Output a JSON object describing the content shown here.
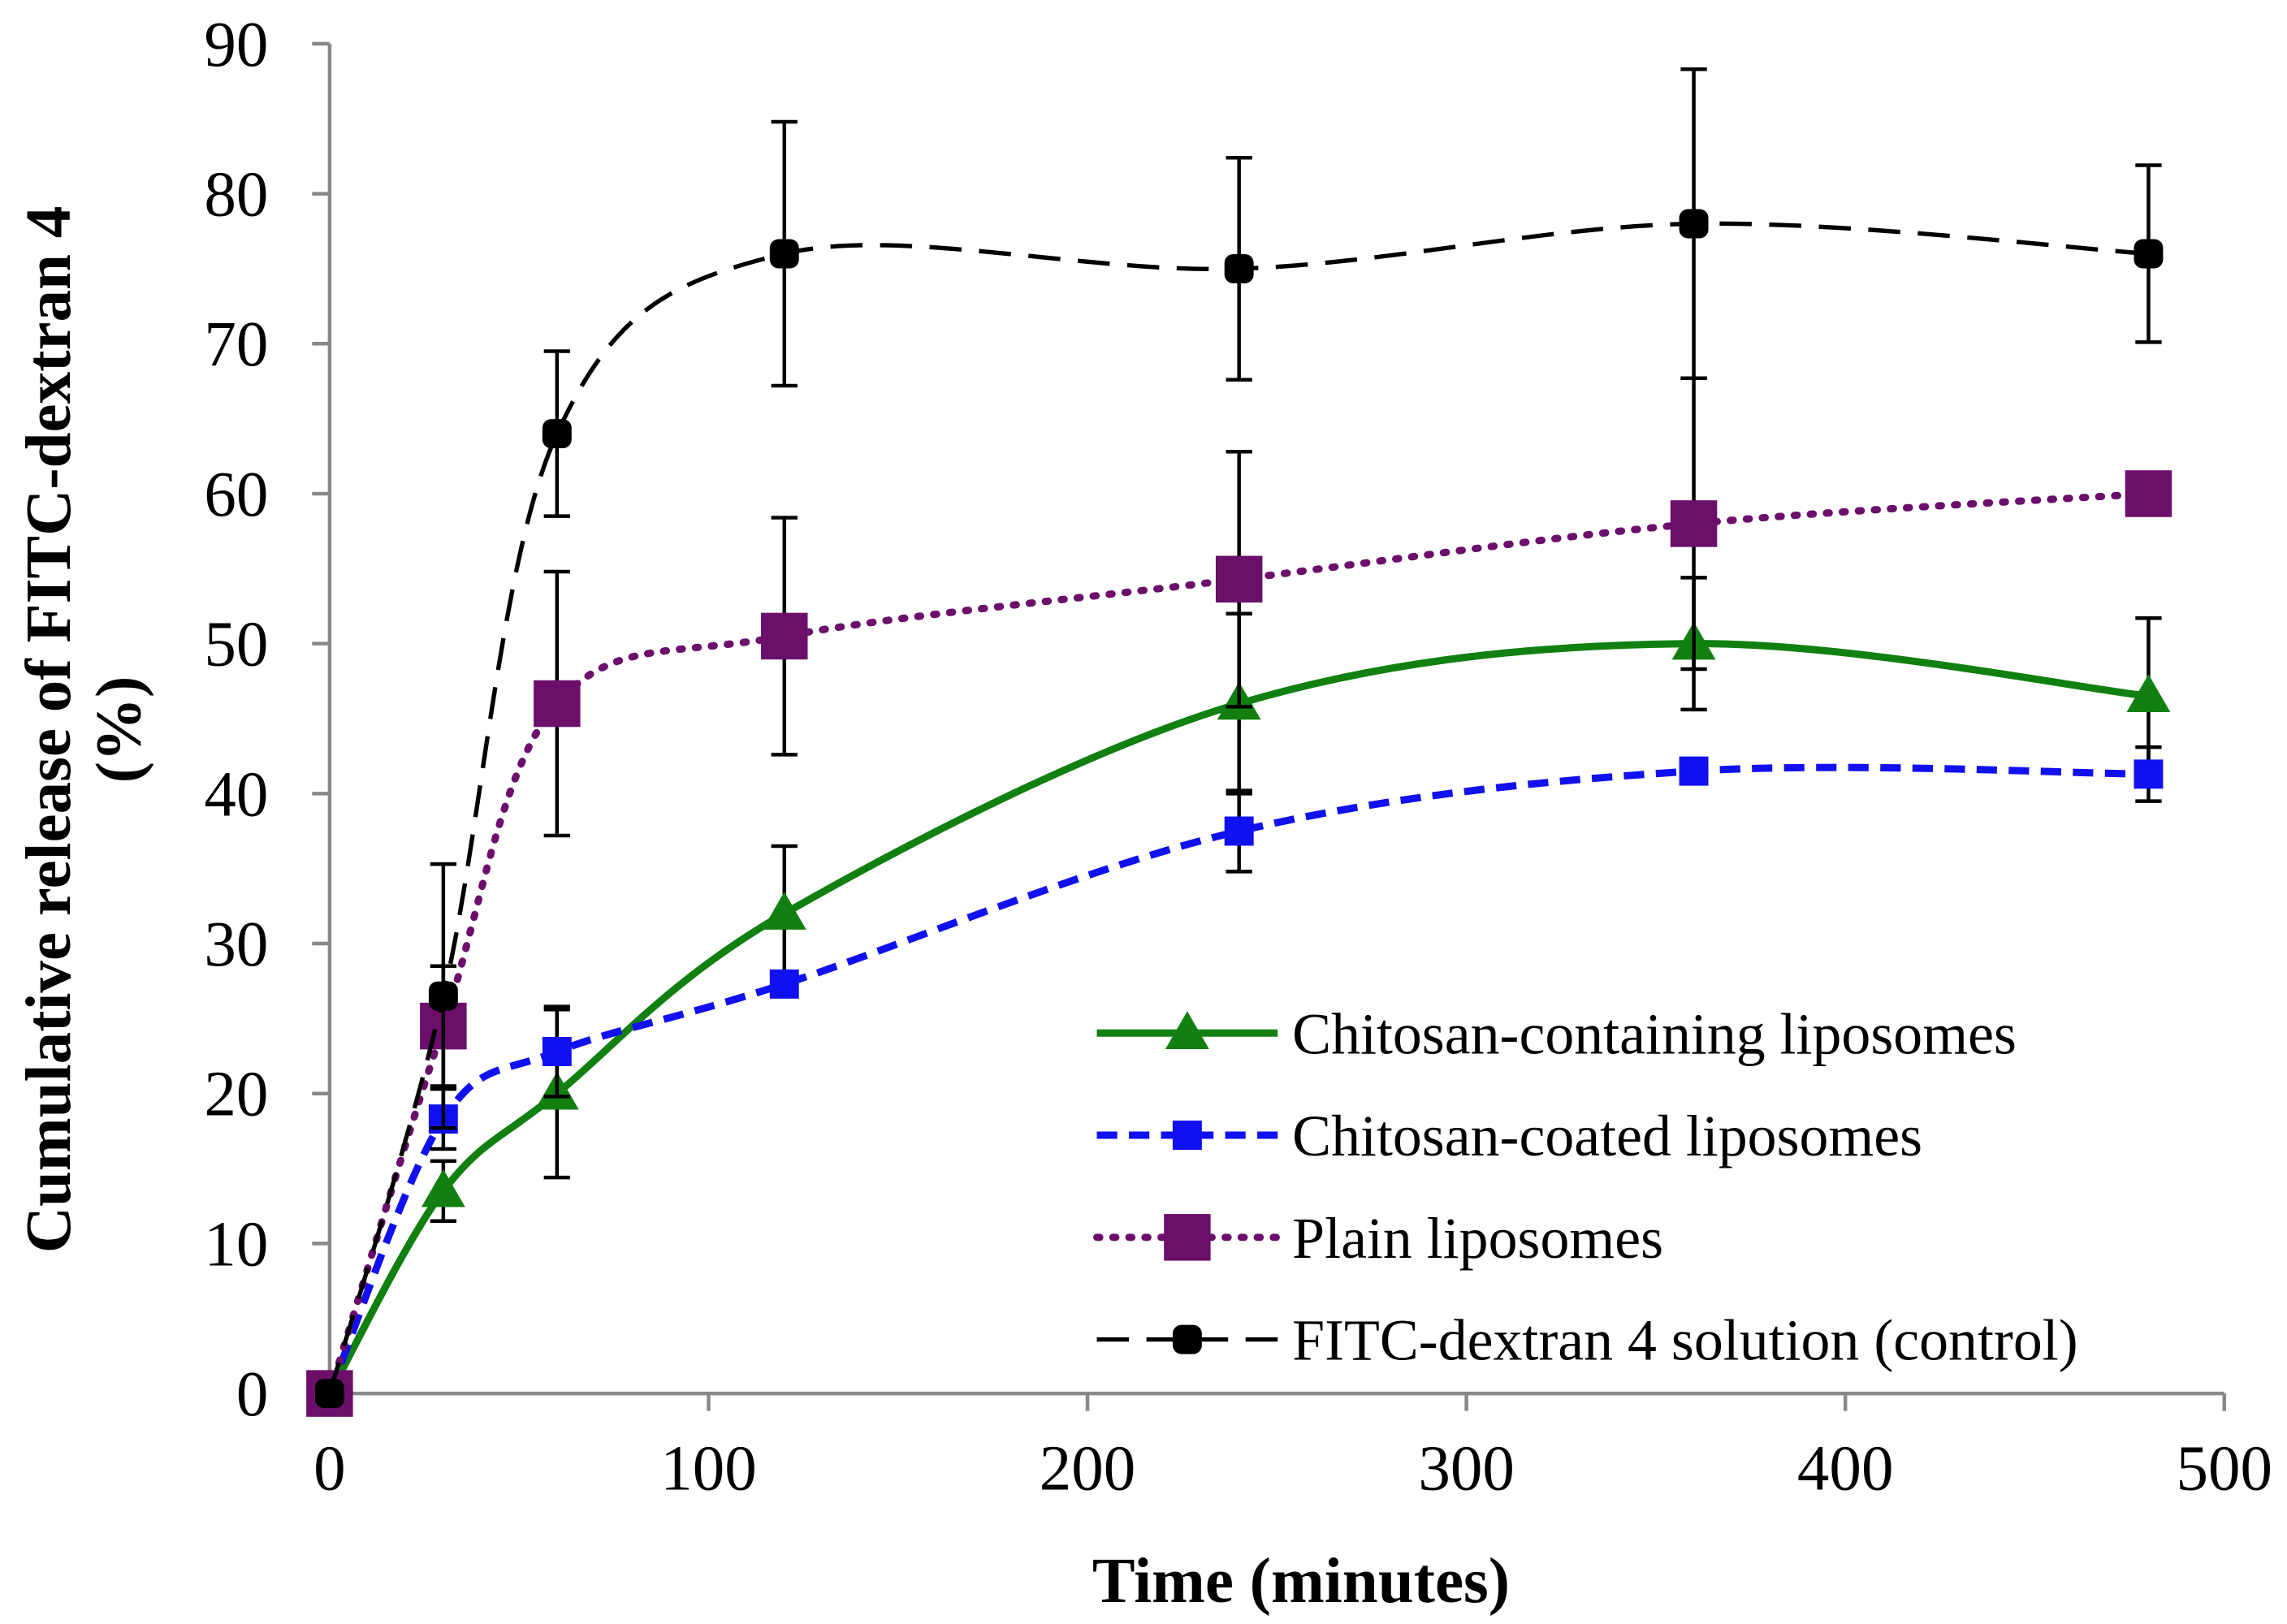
{
  "chart_data": {
    "type": "line",
    "title": "",
    "xlabel": "Time (minutes)",
    "ylabel_line1": "Cumulative release of FITC-dextran 4",
    "ylabel_line2": "(%)",
    "xlim": [
      0,
      500
    ],
    "ylim": [
      0,
      90
    ],
    "xticks": [
      "0",
      "100",
      "200",
      "300",
      "400",
      "500"
    ],
    "yticks": [
      "0",
      "10",
      "20",
      "30",
      "40",
      "50",
      "60",
      "70",
      "80",
      "90"
    ],
    "grid": false,
    "legend_position": "bottom-right",
    "x": [
      0,
      30,
      60,
      120,
      240,
      360,
      480
    ],
    "series": [
      {
        "name": "Chitosan-containing liposomes",
        "color": "#118011",
        "marker": "triangle",
        "dash": "solid",
        "values": [
          0,
          13.5,
          20,
          32,
          46,
          50,
          46.5
        ],
        "errors": [
          0,
          2,
          5.6,
          4.5,
          6,
          4.4,
          5.2
        ]
      },
      {
        "name": "Chitosan-coated liposomes",
        "color": "#1010f0",
        "marker": "square",
        "dash": "dashed",
        "values": [
          0,
          18.3,
          22.8,
          27.3,
          37.5,
          41.5,
          41.3
        ],
        "errors": [
          0,
          2,
          3,
          0,
          2.7,
          0,
          1.8
        ]
      },
      {
        "name": "Plain liposomes",
        "color": "#6b0f6b",
        "marker": "square-large",
        "dash": "dotted",
        "values": [
          0,
          24.5,
          46,
          50.5,
          54.3,
          58,
          60
        ],
        "errors": [
          0,
          4,
          8.8,
          7.9,
          8.5,
          9.7,
          0
        ]
      },
      {
        "name": "FITC-dextran 4 solution (control)",
        "color": "#000000",
        "marker": "circle-square",
        "dash": "long-dash",
        "values": [
          0,
          26.5,
          64,
          76,
          75,
          78,
          76
        ],
        "errors": [
          0,
          8.8,
          5.5,
          8.8,
          7.4,
          10.3,
          5.9
        ]
      }
    ]
  }
}
